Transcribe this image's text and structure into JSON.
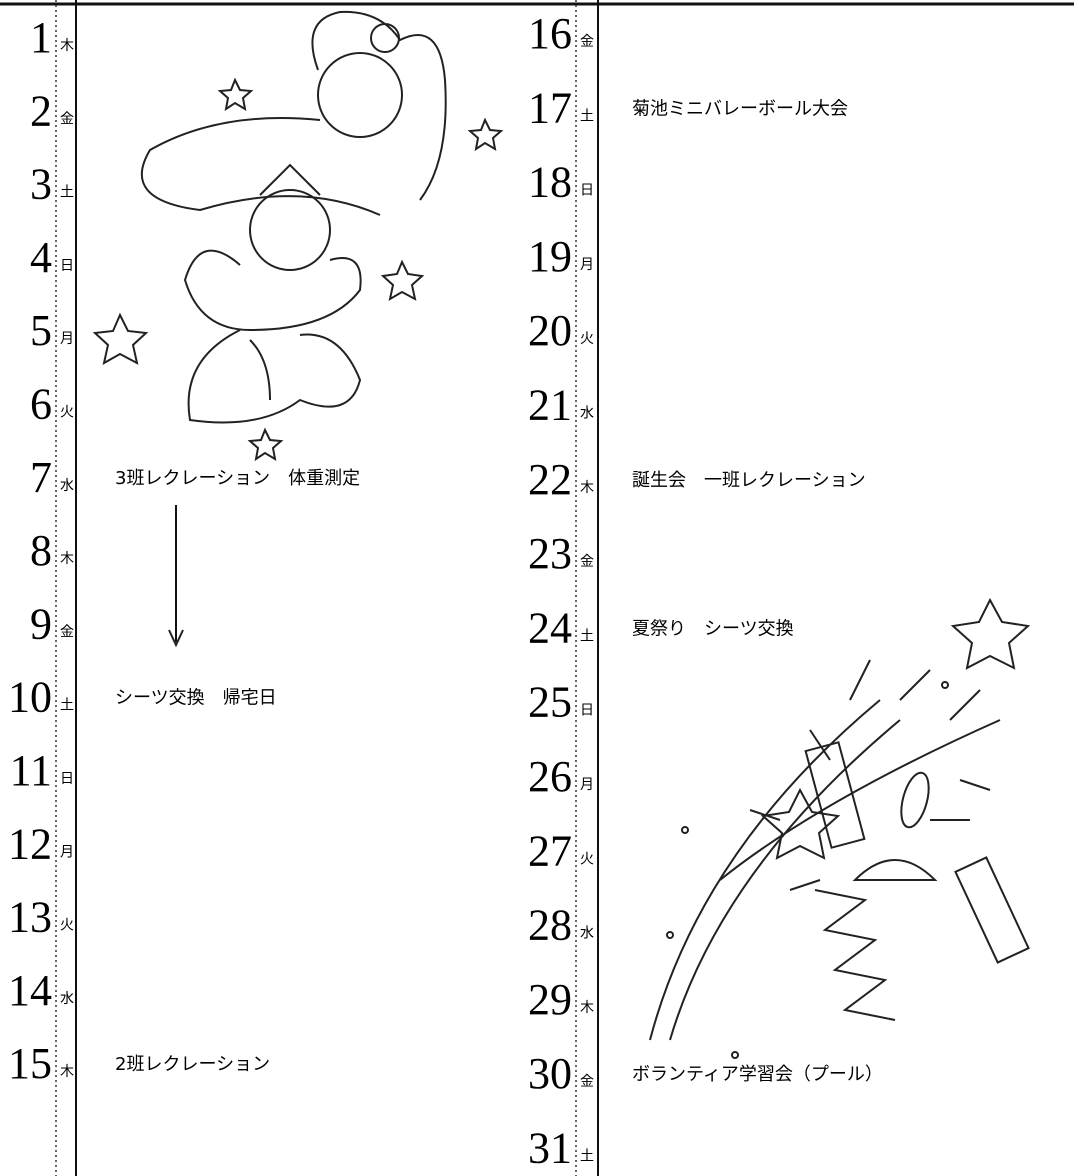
{
  "left": [
    {
      "day": 1,
      "weekday": "木"
    },
    {
      "day": 2,
      "weekday": "金"
    },
    {
      "day": 3,
      "weekday": "土"
    },
    {
      "day": 4,
      "weekday": "日"
    },
    {
      "day": 5,
      "weekday": "月"
    },
    {
      "day": 6,
      "weekday": "火"
    },
    {
      "day": 7,
      "weekday": "水",
      "event": "3班レクレーション　体重測定"
    },
    {
      "day": 8,
      "weekday": "木"
    },
    {
      "day": 9,
      "weekday": "金"
    },
    {
      "day": 10,
      "weekday": "土",
      "event": "シーツ交換　帰宅日"
    },
    {
      "day": 11,
      "weekday": "日"
    },
    {
      "day": 12,
      "weekday": "月"
    },
    {
      "day": 13,
      "weekday": "火"
    },
    {
      "day": 14,
      "weekday": "水"
    },
    {
      "day": 15,
      "weekday": "木",
      "event": "2班レクレーション"
    }
  ],
  "right": [
    {
      "day": 16,
      "weekday": "金"
    },
    {
      "day": 17,
      "weekday": "土",
      "event": "菊池ミニバレーボール大会"
    },
    {
      "day": 18,
      "weekday": "日"
    },
    {
      "day": 19,
      "weekday": "月"
    },
    {
      "day": 20,
      "weekday": "火"
    },
    {
      "day": 21,
      "weekday": "水"
    },
    {
      "day": 22,
      "weekday": "木",
      "event": "誕生会　一班レクレーション"
    },
    {
      "day": 23,
      "weekday": "金"
    },
    {
      "day": 24,
      "weekday": "土",
      "event": "夏祭り　シーツ交換"
    },
    {
      "day": 25,
      "weekday": "日"
    },
    {
      "day": 26,
      "weekday": "月"
    },
    {
      "day": 27,
      "weekday": "火"
    },
    {
      "day": 28,
      "weekday": "水"
    },
    {
      "day": 29,
      "weekday": "木"
    },
    {
      "day": 30,
      "weekday": "金",
      "event": "ボランティア学習会（プール）"
    },
    {
      "day": 31,
      "weekday": "土"
    }
  ]
}
